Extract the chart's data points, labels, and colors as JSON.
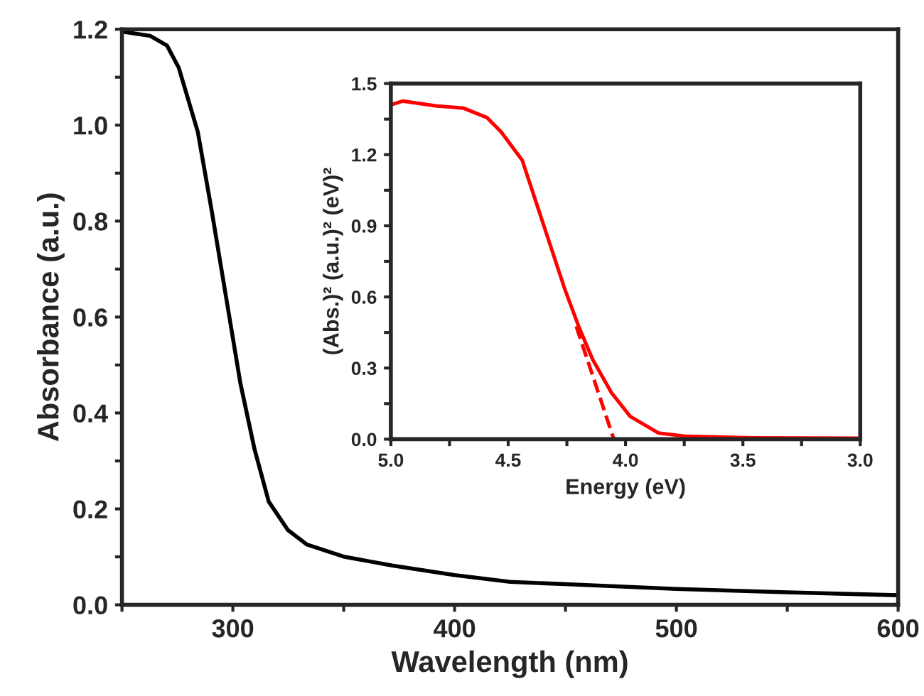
{
  "chart_data": [
    {
      "type": "line",
      "xlabel": "Wavelength (nm)",
      "ylabel": "Absorbance (a.u.)",
      "xlim": [
        250,
        600
      ],
      "xticks": [
        {
          "value": 250,
          "label": null
        },
        300,
        {
          "value": 350,
          "label": null
        },
        400,
        {
          "value": 450,
          "label": null
        },
        500,
        {
          "value": 550,
          "label": null
        },
        600
      ],
      "ylim": [
        0,
        1.2
      ],
      "yticks": [
        {
          "value": 0,
          "label": "0.0"
        },
        {
          "value": 0.1,
          "label": null
        },
        0.2,
        {
          "value": 0.3,
          "label": null
        },
        0.4,
        {
          "value": 0.5,
          "label": null
        },
        0.6,
        {
          "value": 0.7,
          "label": null
        },
        0.8,
        {
          "value": 0.9,
          "label": null
        },
        {
          "value": 1,
          "label": "1.0"
        },
        {
          "value": 1.1,
          "label": null
        },
        1.2
      ],
      "grid": false,
      "legend": false,
      "series": [
        {
          "color": "#000000",
          "line_style": "solid",
          "x": [
            250,
            262.8,
            270.3,
            275.6,
            284.2,
            290.6,
            297,
            303.4,
            309.8,
            316.2,
            324.8,
            333.3,
            350.4,
            371.8,
            400,
            425,
            450,
            500,
            550,
            600
          ],
          "values": [
            1.195,
            1.186,
            1.166,
            1.12,
            0.986,
            0.818,
            0.64,
            0.462,
            0.324,
            0.215,
            0.156,
            0.126,
            0.1,
            0.082,
            0.062,
            0.048,
            0.043,
            0.033,
            0.026,
            0.02
          ]
        }
      ]
    },
    {
      "type": "line",
      "xlabel": "Energy (eV)",
      "ylabel": "(Abs.)² (a.u.)² (eV)²",
      "xlim": [
        5.0,
        3.0
      ],
      "xticks": [
        {
          "value": 5,
          "label": "5.0"
        },
        {
          "value": 4.75,
          "label": null
        },
        4.5,
        {
          "value": 4.25,
          "label": null
        },
        {
          "value": 4,
          "label": "4.0"
        },
        {
          "value": 3.75,
          "label": null
        },
        3.5,
        {
          "value": 3.25,
          "label": null
        },
        {
          "value": 3,
          "label": "3.0"
        }
      ],
      "ylim": [
        0,
        1.5
      ],
      "yticks": [
        {
          "value": 0,
          "label": "0.0"
        },
        {
          "value": 0.15,
          "label": null
        },
        0.3,
        {
          "value": 0.45,
          "label": null
        },
        0.6,
        {
          "value": 0.75,
          "label": null
        },
        0.9,
        {
          "value": 1.05,
          "label": null
        },
        1.2,
        {
          "value": 1.35,
          "label": null
        },
        1.5
      ],
      "grid": false,
      "legend": false,
      "series": [
        {
          "color": "#ff0000",
          "line_style": "solid",
          "x": [
            5.0,
            4.95,
            4.81,
            4.69,
            4.59,
            4.53,
            4.44,
            4.38,
            4.32,
            4.26,
            4.2,
            4.14,
            4.06,
            3.98,
            3.86,
            3.74,
            3.45,
            3.0
          ],
          "values": [
            1.41,
            1.426,
            1.406,
            1.396,
            1.356,
            1.296,
            1.176,
            0.996,
            0.816,
            0.636,
            0.476,
            0.336,
            0.196,
            0.096,
            0.026,
            0.012,
            0.006,
            0.004
          ]
        },
        {
          "color": "#ff0000",
          "line_style": "dashed",
          "x": [
            4.21,
            4.05
          ],
          "values": [
            0.476,
            0
          ]
        }
      ]
    }
  ]
}
